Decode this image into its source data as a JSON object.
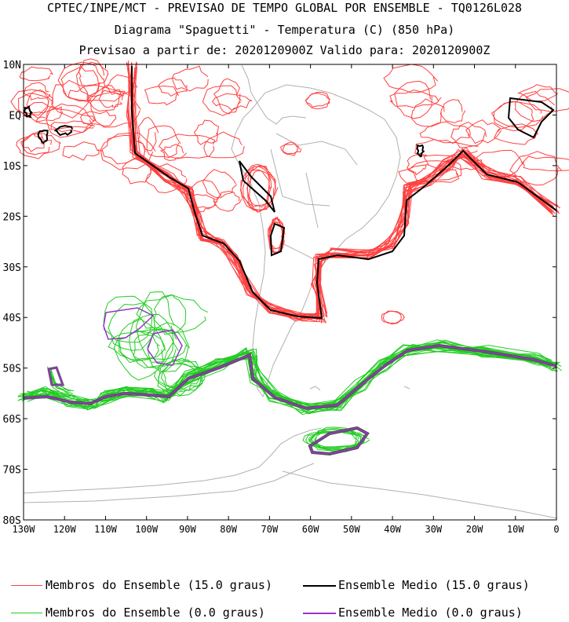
{
  "header": {
    "line1": "CPTEC/INPE/MCT - PREVISAO DE TEMPO GLOBAL POR ENSEMBLE - TQ0126L028",
    "line2": "Diagrama \"Spaguetti\" - Temperatura (C) (850 hPa)",
    "line3": "Previsao a partir de: 2020120900Z  Valido para: 2020120900Z"
  },
  "map": {
    "extent": {
      "lon_min": -130,
      "lon_max": 0,
      "lat_min": -80,
      "lat_max": 10
    },
    "lat_labels": [
      "10N",
      "EQ",
      "10S",
      "20S",
      "30S",
      "40S",
      "50S",
      "60S",
      "70S",
      "80S"
    ],
    "lat_values": [
      10,
      0,
      -10,
      -20,
      -30,
      -40,
      -50,
      -60,
      -70,
      -80
    ],
    "lon_labels": [
      "130W",
      "120W",
      "110W",
      "100W",
      "90W",
      "80W",
      "70W",
      "60W",
      "50W",
      "40W",
      "30W",
      "20W",
      "10W",
      "0"
    ],
    "lon_values": [
      -130,
      -120,
      -110,
      -100,
      -90,
      -80,
      -70,
      -60,
      -50,
      -40,
      -30,
      -20,
      -10,
      0
    ]
  },
  "legend": {
    "members_15": "Membros do Ensemble (15.0 graus)",
    "mean_15": "Ensemble Medio (15.0 graus)",
    "members_0": "Membros do Ensemble (0.0 graus)",
    "mean_0": "Ensemble Medio (0.0 graus)"
  },
  "colors": {
    "member_15": "#ff4040",
    "mean_15": "#000000",
    "member_0": "#22cc22",
    "mean_0": "#9933cc",
    "coast": "#b0b0b0"
  }
}
